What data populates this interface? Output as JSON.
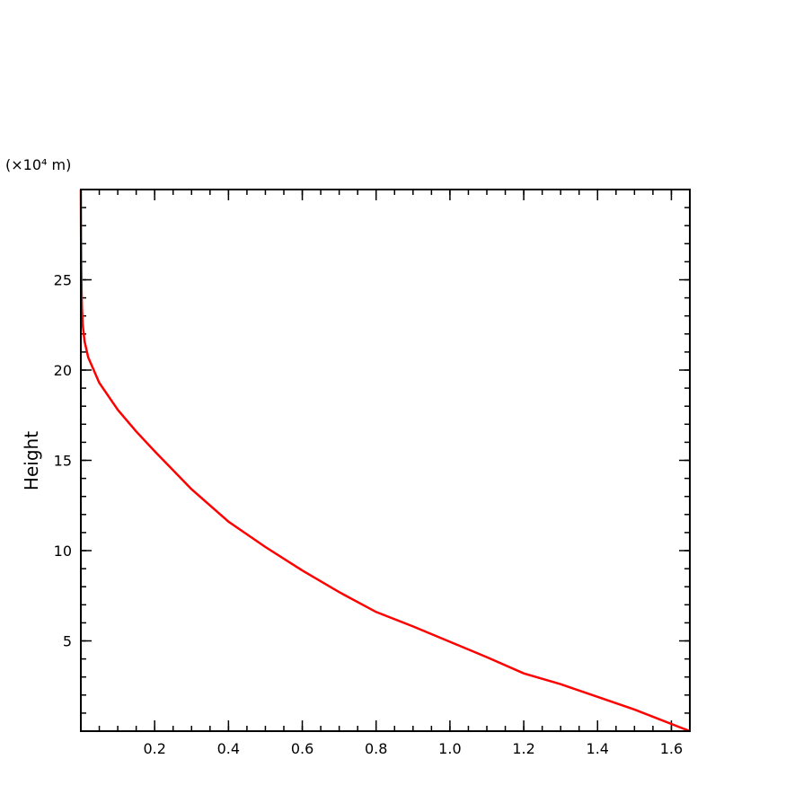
{
  "chart_data": {
    "type": "line",
    "title": "",
    "xlabel": "",
    "ylabel": "Height",
    "y_unit_label": "(×10⁴ m)",
    "xlim": [
      0,
      1.65
    ],
    "ylim": [
      0,
      30
    ],
    "x_ticks": [
      0.2,
      0.4,
      0.6,
      0.8,
      1.0,
      1.2,
      1.4,
      1.6
    ],
    "x_tick_labels": [
      "0.2",
      "0.4",
      "0.6",
      "0.8",
      "1.0",
      "1.2",
      "1.4",
      "1.6"
    ],
    "y_ticks": [
      5,
      10,
      15,
      20,
      25
    ],
    "y_tick_labels": [
      "5",
      "10",
      "15",
      "20",
      "25"
    ],
    "x_minor_step": 0.05,
    "y_minor_step": 1,
    "grid": false,
    "series": [
      {
        "color": "#ff0000",
        "x": [
          1.65,
          1.5,
          1.4,
          1.3,
          1.2,
          1.1,
          1.0,
          0.9,
          0.8,
          0.7,
          0.6,
          0.5,
          0.4,
          0.3,
          0.2,
          0.15,
          0.1,
          0.05,
          0.02,
          0.01,
          0.005,
          0.003,
          0.002,
          0.001,
          0.0005,
          0
        ],
        "y": [
          0,
          1.2,
          1.9,
          2.6,
          3.2,
          4.1,
          4.95,
          5.8,
          6.6,
          7.7,
          8.9,
          10.2,
          11.6,
          13.4,
          15.5,
          16.6,
          17.8,
          19.3,
          20.7,
          21.6,
          22.5,
          23.5,
          24.5,
          26.0,
          27.5,
          30
        ]
      }
    ]
  }
}
